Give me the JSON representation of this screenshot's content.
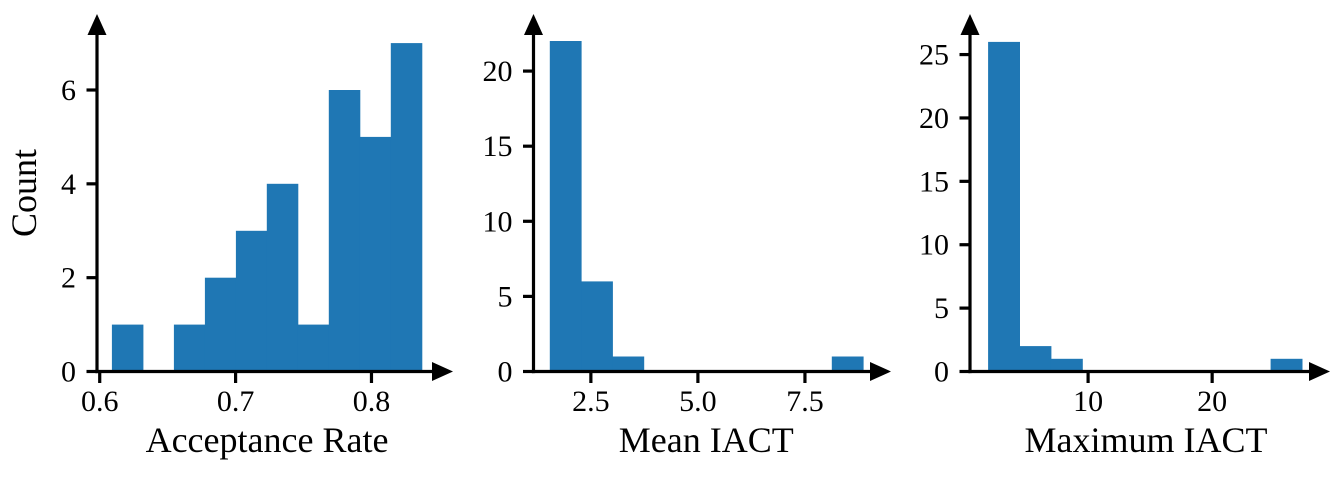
{
  "figure": {
    "background_color": "#ffffff",
    "bar_color": "#1f77b4",
    "axis_color": "#000000",
    "text_color": "#000000",
    "description": "Three histograms sharing a Count y-axis style with arrowed spines"
  },
  "chart_data": [
    {
      "type": "histogram",
      "title": "",
      "xlabel": "Acceptance Rate",
      "ylabel": "Count",
      "bin_start": 0.609,
      "bin_width": 0.0228,
      "counts": [
        1,
        0,
        1,
        2,
        3,
        4,
        1,
        6,
        5,
        7
      ],
      "total_count": 30,
      "x_ticks": [
        0.6,
        0.7,
        0.8
      ],
      "x_tick_labels": [
        "0.6",
        "0.7",
        "0.8"
      ],
      "y_ticks": [
        0,
        2,
        4,
        6
      ],
      "y_tick_labels": [
        "0",
        "2",
        "4",
        "6"
      ],
      "xlim": [
        0.598,
        0.86
      ],
      "ylim": [
        0,
        7.62
      ],
      "grid": false,
      "legend": null
    },
    {
      "type": "histogram",
      "title": "",
      "xlabel": "Mean IACT",
      "ylabel": "",
      "bin_start": 1.54,
      "bin_width": 0.732,
      "counts": [
        22,
        6,
        1,
        0,
        0,
        0,
        0,
        0,
        0,
        1
      ],
      "total_count": 30,
      "x_ticks": [
        2.5,
        5.0,
        7.5
      ],
      "x_tick_labels": [
        "2.5",
        "5.0",
        "7.5"
      ],
      "y_ticks": [
        0,
        5,
        10,
        15,
        20
      ],
      "y_tick_labels": [
        "0",
        "5",
        "10",
        "15",
        "20"
      ],
      "xlim": [
        1.16,
        9.51
      ],
      "ylim": [
        0,
        23.8
      ],
      "grid": false,
      "legend": null
    },
    {
      "type": "histogram",
      "title": "",
      "xlabel": "Maximum IACT",
      "ylabel": "",
      "bin_start": 1.94,
      "bin_width": 2.53,
      "counts": [
        26,
        2,
        1,
        0,
        0,
        0,
        0,
        0,
        0,
        1
      ],
      "total_count": 30,
      "x_ticks": [
        10,
        20
      ],
      "x_tick_labels": [
        "10",
        "20"
      ],
      "y_ticks": [
        0,
        5,
        10,
        15,
        20,
        25
      ],
      "y_tick_labels": [
        "0",
        "5",
        "10",
        "15",
        "20",
        "25"
      ],
      "xlim": [
        0.48,
        29.5
      ],
      "ylim": [
        0,
        28.2
      ],
      "grid": false,
      "legend": null
    }
  ]
}
